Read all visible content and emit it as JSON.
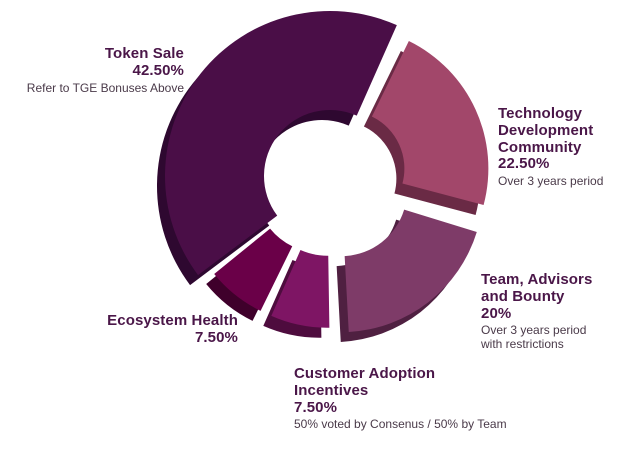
{
  "chart_data": {
    "type": "pie",
    "variant": "exploded donut",
    "title": "",
    "unit": "%",
    "slices": [
      {
        "name_lines": [
          "Token Sale"
        ],
        "value": 42.5,
        "value_label": "42.50%",
        "note_lines": [
          "Refer to TGE Bonuses Above"
        ],
        "color": "#4a0e47",
        "side_color": "#2e0830"
      },
      {
        "name_lines": [
          "Technology",
          "Development",
          "Community"
        ],
        "value": 22.5,
        "value_label": "22.50%",
        "note_lines": [
          "Over 3 years period"
        ],
        "color": "#a2476a",
        "side_color": "#6a2a45"
      },
      {
        "name_lines": [
          "Team, Advisors",
          "and Bounty"
        ],
        "value": 20,
        "value_label": "20%",
        "note_lines": [
          "Over 3 years period",
          "with restrictions"
        ],
        "color": "#7e3b68",
        "side_color": "#4f2041"
      },
      {
        "name_lines": [
          "Customer Adoption",
          "Incentives"
        ],
        "value": 7.5,
        "value_label": "7.50%",
        "note_lines": [
          "50%  voted by Consenus / 50% by Team"
        ],
        "color": "#7e1564",
        "side_color": "#4e0c3e"
      },
      {
        "name_lines": [
          "Ecosystem Health"
        ],
        "value": 7.5,
        "value_label": "7.50%",
        "note_lines": [],
        "color": "#6a0048",
        "side_color": "#3f002b"
      }
    ]
  }
}
